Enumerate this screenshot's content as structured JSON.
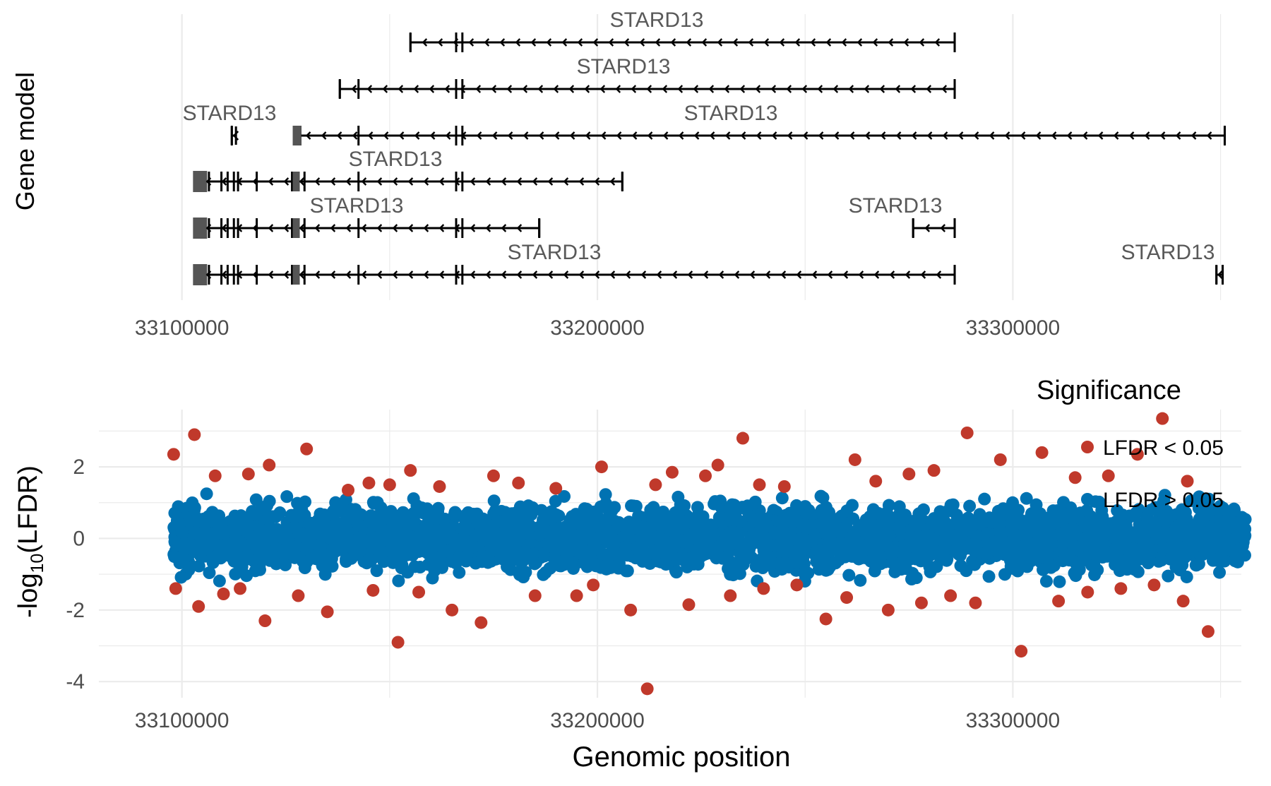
{
  "chart_data": [
    {
      "type": "gene_model",
      "ylabel": "Gene model",
      "xlim": [
        33080000,
        33355000
      ],
      "x_ticks": [
        33100000,
        33200000,
        33300000
      ],
      "x_tick_labels": [
        "33100000",
        "33200000",
        "33300000"
      ],
      "strand": "-",
      "transcripts": [
        {
          "label": "STARD13",
          "start": 33155000,
          "end": 33286000,
          "exons": [
            33155000,
            33166000,
            33167500,
            33286000
          ]
        },
        {
          "label": "STARD13",
          "start": 33138000,
          "end": 33286000,
          "exons": [
            33138000,
            33142500,
            33166000,
            33167500,
            33286000
          ]
        },
        {
          "label": "STARD13",
          "start": 33112000,
          "end": 33113000,
          "exons": [
            33112000
          ]
        },
        {
          "label": "STARD13",
          "start": 33127000,
          "end": 33351000,
          "exons": [
            33127000,
            33128500,
            33142500,
            33166000,
            33167500,
            33351000
          ]
        },
        {
          "label": "STARD13",
          "start": 33103000,
          "end": 33206000,
          "exons": [
            33103000,
            33104500,
            33106500,
            33109500,
            33111000,
            33112500,
            33113500,
            33118000,
            33126500,
            33128000,
            33129500,
            33142500,
            33166000,
            33167500,
            33206000
          ]
        },
        {
          "label": "STARD13",
          "start": 33103000,
          "end": 33186000,
          "exons": [
            33103000,
            33104500,
            33106500,
            33109500,
            33111000,
            33112500,
            33113500,
            33118000,
            33126500,
            33128000,
            33129500,
            33142500,
            33166000,
            33167500,
            33186000
          ]
        },
        {
          "label": "STARD13",
          "start": 33276000,
          "end": 33286000,
          "exons": [
            33276000,
            33286000
          ]
        },
        {
          "label": "STARD13",
          "start": 33103000,
          "end": 33286000,
          "exons": [
            33103000,
            33104500,
            33106500,
            33109500,
            33111000,
            33112500,
            33113500,
            33118000,
            33126500,
            33128000,
            33129500,
            33142500,
            33166000,
            33167500,
            33286000
          ]
        },
        {
          "label": "STARD13",
          "start": 33349000,
          "end": 33350500,
          "exons": [
            33349000,
            33350500
          ]
        }
      ]
    },
    {
      "type": "scatter",
      "xlabel": "Genomic position",
      "ylabel_prefix": "-log",
      "ylabel_sub": "10",
      "ylabel_suffix": "(LFDR)",
      "xlim": [
        33080000,
        33355000
      ],
      "ylim": [
        -4.45,
        3.6
      ],
      "x_ticks": [
        33100000,
        33200000,
        33300000
      ],
      "x_tick_labels": [
        "33100000",
        "33200000",
        "33300000"
      ],
      "y_ticks": [
        -4,
        -2,
        0,
        2
      ],
      "y_tick_labels": [
        "-4",
        "-2",
        "0",
        "2"
      ],
      "grid": true,
      "legend_title": "Significance",
      "legend_position": "top-right",
      "series": [
        {
          "name": "LFDR < 0.05",
          "color": "#c0392b",
          "x": [
            33098000,
            33103000,
            33108000,
            33116000,
            33121000,
            33130000,
            33140000,
            33145000,
            33150000,
            33155000,
            33162000,
            33175000,
            33181000,
            33190000,
            33201000,
            33214000,
            33218000,
            33226000,
            33229000,
            33235000,
            33239000,
            33245000,
            33262000,
            33267000,
            33275000,
            33281000,
            33289000,
            33297000,
            33307000,
            33315000,
            33323000,
            33330000,
            33336000,
            33342000,
            33098500,
            33104000,
            33110000,
            33114000,
            33120000,
            33128000,
            33135000,
            33146000,
            33152000,
            33157000,
            33165000,
            33172000,
            33185000,
            33195000,
            33199000,
            33208000,
            33212000,
            33222000,
            33232000,
            33240000,
            33248000,
            33255000,
            33260000,
            33270000,
            33278000,
            33285000,
            33291000,
            33302000,
            33311000,
            33318000,
            33326000,
            33334000,
            33341000,
            33347000
          ],
          "y": [
            2.35,
            2.9,
            1.75,
            1.8,
            2.05,
            2.5,
            1.35,
            1.55,
            1.5,
            1.9,
            1.45,
            1.75,
            1.55,
            1.4,
            2.0,
            1.5,
            1.85,
            1.75,
            2.05,
            2.8,
            1.5,
            1.45,
            2.2,
            1.6,
            1.8,
            1.9,
            2.95,
            2.2,
            2.4,
            1.7,
            1.75,
            2.35,
            3.35,
            1.6,
            -1.4,
            -1.9,
            -1.55,
            -1.4,
            -2.3,
            -1.6,
            -2.05,
            -1.45,
            -2.9,
            -1.5,
            -2.0,
            -2.35,
            -1.6,
            -1.6,
            -1.3,
            -2.0,
            -4.2,
            -1.85,
            -1.6,
            -1.4,
            -1.3,
            -2.25,
            -1.65,
            -2.0,
            -1.8,
            -1.6,
            -1.8,
            -3.15,
            -1.75,
            -1.5,
            -1.4,
            -1.3,
            -1.75,
            -2.6
          ]
        },
        {
          "name": "LFDR > 0.05",
          "color": "#0072b2",
          "x_range": [
            33098000,
            33356000
          ],
          "y_range": [
            -1.25,
            1.25
          ],
          "n_points": 3400
        }
      ]
    }
  ]
}
